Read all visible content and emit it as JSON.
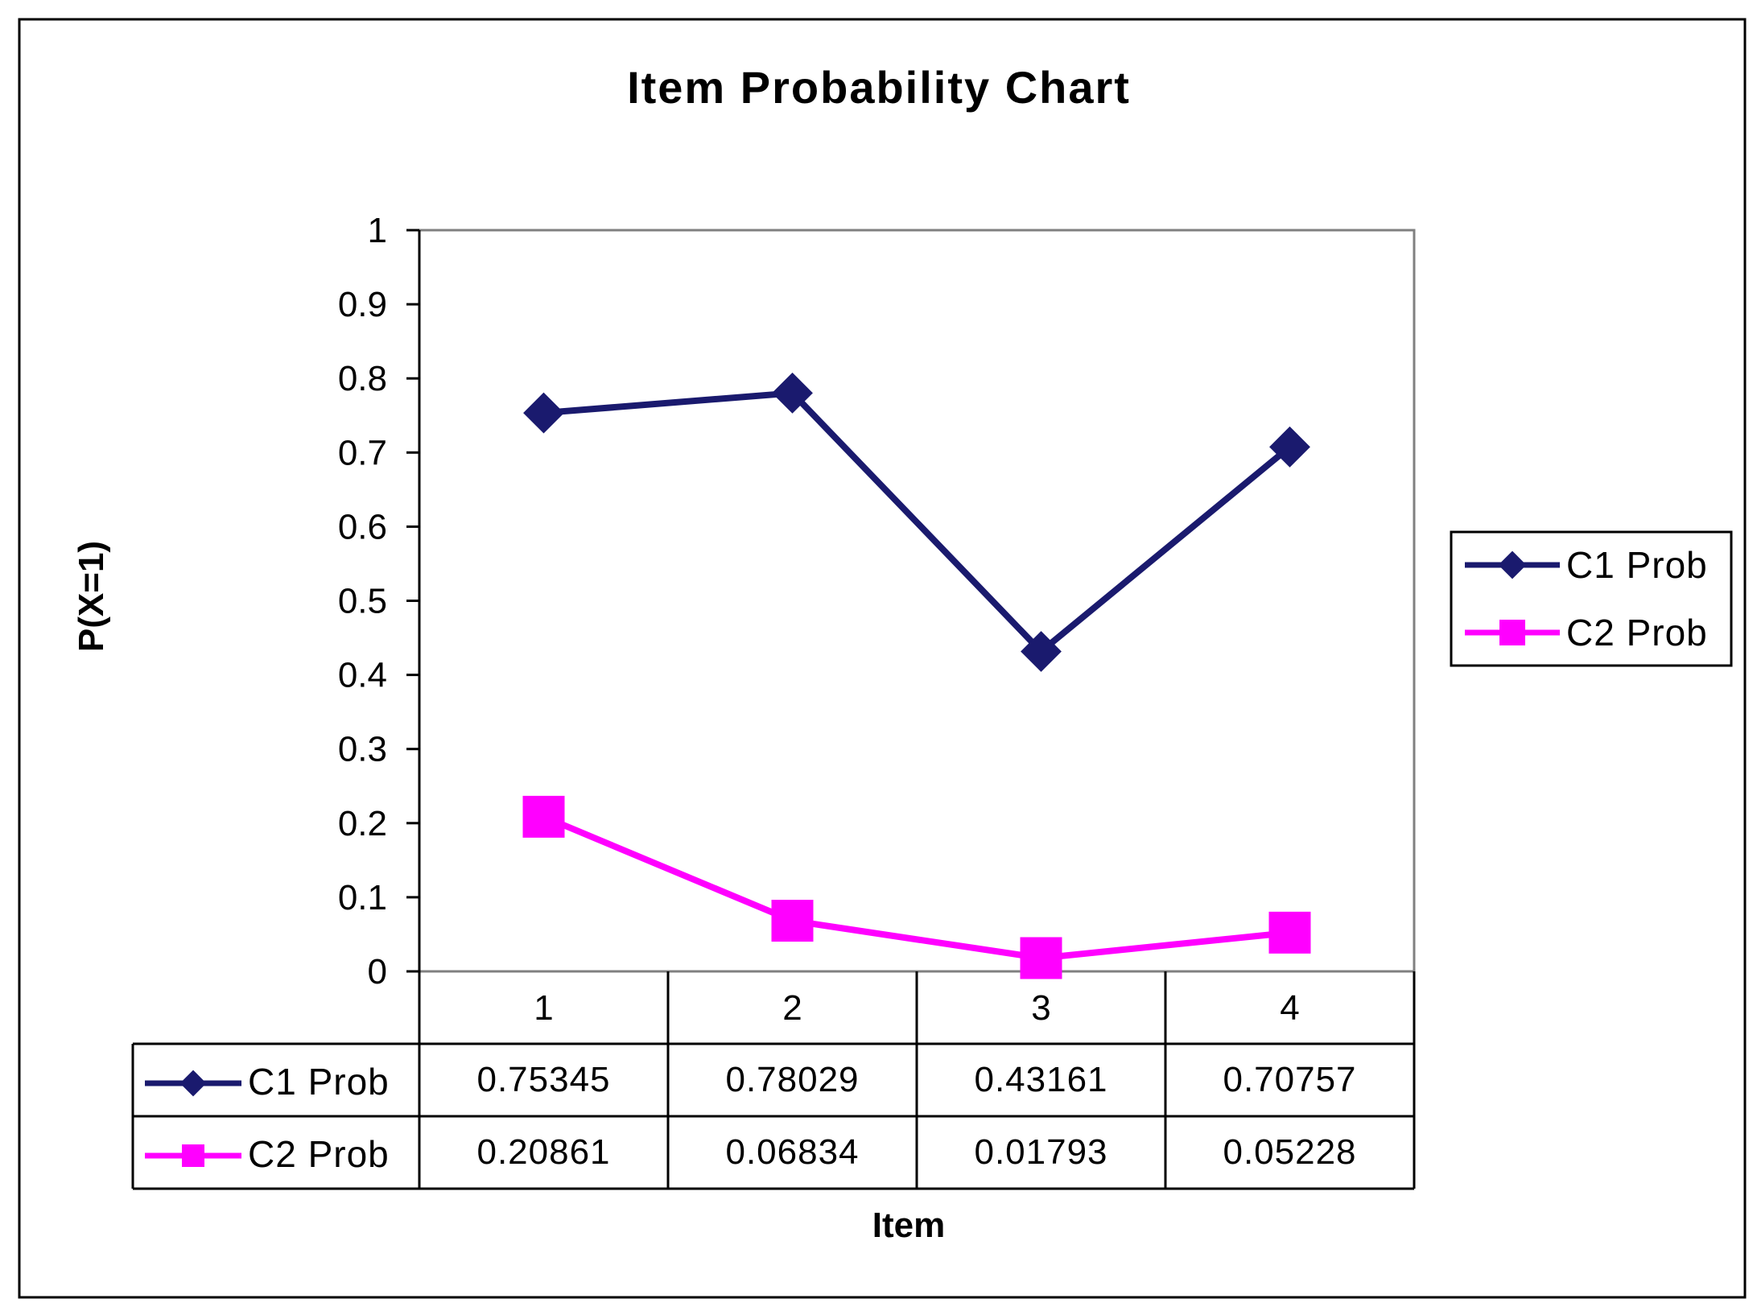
{
  "chart_data": {
    "type": "line",
    "title": "Item Probability Chart",
    "xlabel": "Item",
    "ylabel": "P(X=1)",
    "categories": [
      "1",
      "2",
      "3",
      "4"
    ],
    "ylim": [
      0,
      1
    ],
    "yticks": [
      "0",
      "0.1",
      "0.2",
      "0.3",
      "0.4",
      "0.5",
      "0.6",
      "0.7",
      "0.8",
      "0.9",
      "1"
    ],
    "grid": false,
    "legend_position": "right",
    "series": [
      {
        "name": "C1 Prob",
        "values": [
          0.75345,
          0.78029,
          0.43161,
          0.70757
        ],
        "labels": [
          "0.75345",
          "0.78029",
          "0.43161",
          "0.70757"
        ],
        "color": "#1a1a6e",
        "marker": "diamond"
      },
      {
        "name": "C2 Prob",
        "values": [
          0.20861,
          0.06834,
          0.01793,
          0.05228
        ],
        "labels": [
          "0.20861",
          "0.06834",
          "0.01793",
          "0.05228"
        ],
        "color": "#ff00ff",
        "marker": "square"
      }
    ],
    "data_table": true
  }
}
